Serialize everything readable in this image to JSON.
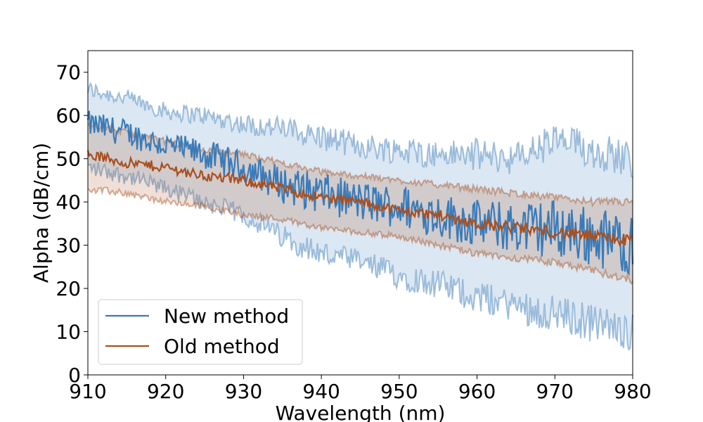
{
  "chart_data": {
    "type": "line",
    "title": "",
    "xlabel": "Wavelength (nm)",
    "ylabel": "Alpha (dB/cm)",
    "xlim": [
      910,
      980
    ],
    "ylim": [
      0,
      75
    ],
    "xticks": [
      910,
      920,
      930,
      940,
      950,
      960,
      970,
      980
    ],
    "yticks": [
      0,
      10,
      20,
      30,
      40,
      50,
      60,
      70
    ],
    "grid": false,
    "legend_position": "lower-left",
    "x": [
      910,
      915,
      920,
      925,
      930,
      935,
      940,
      945,
      950,
      955,
      960,
      965,
      970,
      975,
      980
    ],
    "series": [
      {
        "name": "New method",
        "color": "#3a7bb8",
        "mean": [
          58,
          56,
          53,
          51,
          48,
          44,
          42,
          40,
          39,
          37,
          35,
          34,
          34,
          32,
          30
        ],
        "upper": [
          66,
          64,
          61,
          60,
          58,
          57,
          55,
          53,
          52,
          51,
          51,
          50,
          54,
          52,
          50
        ],
        "lower": [
          48,
          46,
          43,
          40,
          37,
          32,
          28,
          26,
          23,
          21,
          18,
          16,
          14,
          12,
          10
        ]
      },
      {
        "name": "Old method",
        "color": "#a94f1f",
        "mean": [
          51,
          49,
          48,
          46,
          45,
          43,
          41,
          40,
          38,
          37,
          35,
          34,
          33,
          32,
          31
        ],
        "upper": [
          58,
          56,
          54,
          52,
          51,
          49,
          47,
          46,
          45,
          44,
          43,
          42,
          41,
          40,
          40
        ],
        "lower": [
          43,
          42,
          40,
          39,
          37,
          36,
          34,
          33,
          32,
          30,
          28,
          27,
          26,
          24,
          22
        ]
      }
    ]
  }
}
